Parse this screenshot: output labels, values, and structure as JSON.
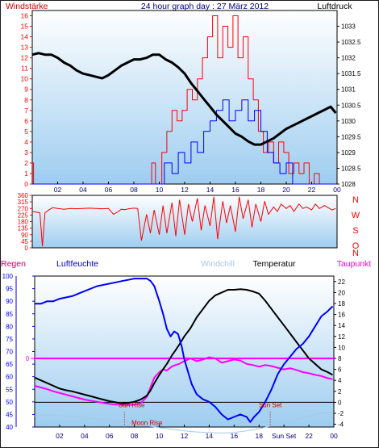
{
  "header": {
    "left_label": "Windstärke",
    "title": "24 hour graph day : 27 März 2012",
    "right_label": "Luftdruck"
  },
  "legend": {
    "regen": "Regen",
    "luftfeuchte": "Luftfeuchte",
    "windchill": "Windchill",
    "temperatur": "Temperatur",
    "taupunkt": "Taupunkt"
  },
  "direction_labels": [
    "N",
    "W",
    "S",
    "O",
    "N"
  ],
  "colors": {
    "frame": "#1a1a1a",
    "plot_bg_top": "#ffffff",
    "plot_bg_bottom": "#9ecdf0",
    "wind_gust": "#ff0000",
    "wind_avg": "#0000ff",
    "pressure": "#000000",
    "direction": "#ff0000",
    "humidity": "#0000ff",
    "temperature": "#000000",
    "dewpoint": "#ff00ff",
    "windchill": "#a8c8e8",
    "rain_axis": "#0000ff",
    "temp_axis": "#000000",
    "sun_marker": "#cc0000",
    "hour_label": "#000080"
  },
  "hour_ticks": [
    "02",
    "04",
    "06",
    "08",
    "10",
    "12",
    "14",
    "16",
    "18",
    "20",
    "22",
    "00"
  ],
  "hour_ticks_bottom": [
    "02",
    "04",
    "06",
    "08",
    "10",
    "12",
    "14",
    "16",
    "18",
    "Sun Set",
    "22",
    "00"
  ],
  "events": {
    "sunrise_label": "Sun Rise",
    "sunset_label": "Sun Set",
    "moonrise_label": "Moon Rise"
  },
  "chart_data": [
    {
      "type": "line",
      "title": "24 hour graph day : 27 März 2012",
      "xlabel": "",
      "x_unit": "hour",
      "xlim": [
        0,
        24
      ],
      "y_left": {
        "label": "Windstärke",
        "ticks": [
          0,
          1,
          2,
          3,
          4,
          5,
          6,
          7,
          8,
          9,
          10,
          11,
          12,
          13,
          14,
          15,
          16
        ],
        "lim": [
          0,
          16.5
        ]
      },
      "y_right": {
        "label": "Luftdruck",
        "ticks": [
          1028,
          1028.5,
          1029,
          1029.5,
          1030,
          1030.5,
          1031,
          1031.5,
          1032,
          1032.5,
          1033
        ],
        "lim": [
          1028,
          1033.5
        ]
      },
      "series": [
        {
          "axis": "right",
          "x": [
            0,
            0.5,
            1,
            1.5,
            2,
            2.5,
            3,
            3.5,
            4,
            4.5,
            5,
            5.5,
            6,
            6.5,
            7,
            7.5,
            8,
            8.5,
            9,
            9.5,
            10,
            10.5,
            11,
            11.5,
            12,
            12.5,
            13,
            13.5,
            14,
            14.5,
            15,
            15.5,
            16,
            16.5,
            17,
            17.5,
            18,
            18.5,
            19,
            19.5,
            20,
            20.5,
            21,
            21.5,
            22,
            22.5,
            23,
            23.5,
            23.9
          ],
          "y": [
            1032.1,
            1032.15,
            1032.1,
            1032.1,
            1032.0,
            1031.85,
            1031.75,
            1031.6,
            1031.5,
            1031.45,
            1031.4,
            1031.35,
            1031.45,
            1031.6,
            1031.75,
            1031.85,
            1031.95,
            1031.95,
            1032.0,
            1032.1,
            1032.1,
            1031.95,
            1031.85,
            1031.7,
            1031.5,
            1031.2,
            1030.95,
            1030.7,
            1030.45,
            1030.2,
            1030.0,
            1029.8,
            1029.6,
            1029.5,
            1029.35,
            1029.25,
            1029.25,
            1029.35,
            1029.45,
            1029.6,
            1029.75,
            1029.85,
            1029.95,
            1030.05,
            1030.15,
            1030.25,
            1030.35,
            1030.45,
            1030.25
          ]
        },
        {
          "axis": "left",
          "x": [
            0,
            0.1,
            0.1,
            9.4,
            9.4,
            9.7,
            9.7,
            10.2,
            10.2,
            10.6,
            10.6,
            11,
            11,
            11.4,
            11.4,
            11.8,
            11.8,
            12.2,
            12.2,
            12.6,
            12.6,
            13,
            13,
            13.4,
            13.4,
            13.8,
            13.8,
            14.2,
            14.2,
            14.6,
            14.6,
            15,
            15,
            15.4,
            15.4,
            15.8,
            15.8,
            16.2,
            16.2,
            16.6,
            16.6,
            17,
            17,
            17.4,
            17.4,
            17.8,
            17.8,
            18.2,
            18.2,
            18.6,
            18.6,
            19,
            19,
            19.4,
            19.4,
            19.8,
            19.8,
            20.2,
            20.2,
            20.6,
            20.6,
            21,
            21,
            21.4,
            21.4,
            21.8,
            21.8,
            22.2,
            22.2,
            22.6,
            22.6,
            23,
            23,
            23.9
          ],
          "y": [
            2,
            2,
            0,
            0,
            2,
            2,
            0,
            0,
            3,
            3,
            5,
            5,
            7,
            7,
            6,
            6,
            7,
            7,
            9,
            9,
            8,
            8,
            10,
            10,
            12,
            12,
            14,
            14,
            16,
            16,
            12,
            12,
            15,
            15,
            13,
            13,
            16,
            16,
            12,
            12,
            14,
            14,
            10,
            10,
            8,
            8,
            5,
            5,
            3,
            3,
            4,
            4,
            2,
            2,
            4,
            4,
            3,
            3,
            1,
            1,
            2,
            2,
            1,
            1,
            2,
            2,
            0,
            0,
            1,
            1,
            0,
            0,
            0,
            0
          ]
        },
        {
          "axis": "left",
          "x": [
            0,
            10.4,
            10.4,
            11,
            11,
            11.5,
            11.5,
            12,
            12,
            12.5,
            12.5,
            13,
            13,
            13.5,
            13.5,
            14,
            14,
            14.5,
            14.5,
            15,
            15,
            15.5,
            15.5,
            16,
            16,
            16.5,
            16.5,
            17,
            17,
            17.5,
            17.5,
            18,
            18,
            18.5,
            18.5,
            19,
            19,
            19.5,
            19.5,
            20,
            20,
            20.5,
            20.5,
            21,
            21,
            23.9
          ],
          "y": [
            0,
            0,
            2,
            2,
            1,
            1,
            3,
            3,
            2,
            2,
            4,
            4,
            3,
            3,
            5,
            5,
            6,
            6,
            7,
            7,
            8,
            8,
            6,
            6,
            7,
            7,
            8,
            8,
            6,
            6,
            7,
            7,
            5,
            5,
            3,
            3,
            2,
            2,
            1,
            1,
            2,
            2,
            0,
            0,
            0,
            0
          ]
        }
      ]
    },
    {
      "type": "line",
      "x_unit": "hour",
      "xlim": [
        0,
        24
      ],
      "y_left": {
        "ticks": [
          0,
          45,
          90,
          135,
          180,
          225,
          270,
          315,
          360
        ],
        "lim": [
          0,
          360
        ]
      },
      "series": [
        {
          "axis": "left",
          "x": [
            0,
            0.6,
            0.8,
            1,
            1.3,
            1.6,
            2,
            2.5,
            3,
            3.5,
            4,
            4.5,
            5,
            5.5,
            6,
            6.2,
            6.4,
            6.8,
            7,
            7.3,
            7.6,
            8,
            8.3,
            8.6,
            9,
            9.3,
            9.6,
            10,
            10.3,
            10.6,
            11,
            11.3,
            11.6,
            12,
            12.3,
            12.6,
            13,
            13.3,
            13.6,
            14,
            14.3,
            14.6,
            15,
            15.3,
            15.6,
            16,
            16.3,
            16.6,
            17,
            17.3,
            17.6,
            18,
            18.3,
            18.6,
            19,
            19.3,
            19.6,
            20,
            20.3,
            20.6,
            21,
            21.3,
            21.6,
            22,
            22.3,
            22.6,
            23,
            23.3,
            23.6,
            23.9
          ],
          "y": [
            250,
            240,
            10,
            240,
            260,
            275,
            270,
            265,
            270,
            268,
            270,
            272,
            270,
            268,
            270,
            250,
            230,
            250,
            265,
            262,
            268,
            272,
            270,
            50,
            230,
            100,
            260,
            90,
            290,
            100,
            310,
            80,
            330,
            90,
            300,
            180,
            340,
            120,
            290,
            150,
            350,
            60,
            320,
            170,
            290,
            110,
            350,
            200,
            330,
            140,
            300,
            180,
            320,
            230,
            280,
            250,
            300,
            270,
            290,
            250,
            300,
            270,
            280,
            260,
            300,
            270,
            290,
            275,
            260,
            270
          ]
        }
      ]
    },
    {
      "type": "line",
      "x_unit": "hour",
      "xlim": [
        0,
        24
      ],
      "y_left": {
        "label": "Luftfeuchte",
        "ticks": [
          40,
          45,
          50,
          55,
          60,
          65,
          70,
          75,
          80,
          85,
          90,
          95,
          100
        ],
        "lim": [
          40,
          100
        ]
      },
      "y_right": {
        "label": "Temperatur",
        "ticks": [
          -4,
          -2,
          0,
          2,
          4,
          6,
          8,
          10,
          12,
          14,
          16,
          18,
          20,
          22
        ],
        "lim": [
          -4.5,
          23
        ]
      },
      "series": [
        {
          "name": "Luftfeuchte",
          "axis": "left",
          "x": [
            0,
            0.5,
            1,
            1.5,
            2,
            3,
            4,
            5,
            6,
            6.5,
            7,
            7.5,
            8,
            8.5,
            9,
            9.3,
            9.6,
            10,
            10.3,
            10.6,
            10.9,
            11.2,
            11.5,
            11.8,
            12,
            12.3,
            12.6,
            13,
            13.5,
            14,
            14.5,
            15,
            15.5,
            16,
            16.5,
            17,
            17.3,
            17.6,
            18,
            18.5,
            19,
            19.5,
            20,
            20.5,
            21,
            21.5,
            22,
            22.5,
            23,
            23.5,
            23.9
          ],
          "y": [
            89,
            89,
            90,
            90,
            91,
            92,
            94,
            96,
            97,
            97.5,
            98,
            98.5,
            99,
            99,
            99,
            98,
            96,
            90,
            85,
            79,
            76,
            78,
            77,
            72,
            67,
            62,
            57,
            53,
            51,
            50,
            48,
            45,
            43,
            44,
            45,
            44,
            42,
            44,
            46,
            50,
            55,
            61,
            65,
            68,
            71,
            73,
            76,
            80,
            84,
            86,
            88
          ]
        },
        {
          "name": "Temperatur",
          "axis": "right",
          "x": [
            0,
            0.5,
            1,
            1.5,
            2,
            2.5,
            3,
            3.5,
            4,
            4.5,
            5,
            5.5,
            6,
            6.5,
            7,
            7.5,
            8,
            8.5,
            9,
            9.3,
            9.6,
            10,
            10.3,
            10.6,
            11,
            11.3,
            11.6,
            12,
            12.5,
            13,
            13.5,
            14,
            14.5,
            15,
            15.5,
            16,
            16.5,
            17,
            17.5,
            18,
            18.5,
            19,
            19.5,
            20,
            20.5,
            21,
            21.5,
            22,
            22.5,
            23,
            23.5,
            23.9
          ],
          "y": [
            4.5,
            4,
            3.5,
            3,
            2.5,
            2.2,
            2,
            1.7,
            1.4,
            1.1,
            0.8,
            0.5,
            0.2,
            0,
            -0.2,
            -0.1,
            0.1,
            0.5,
            1.2,
            2.2,
            3.5,
            5,
            6,
            7,
            8.5,
            9.5,
            10.5,
            12,
            13.5,
            15.5,
            17,
            18.5,
            19.5,
            20,
            20.5,
            20.5,
            20.6,
            20.5,
            20.2,
            19.8,
            18.5,
            17,
            15.5,
            14,
            12.5,
            11,
            9.5,
            8,
            7,
            6,
            5.5,
            5
          ]
        },
        {
          "name": "Taupunkt",
          "axis": "right",
          "x": [
            0,
            0.5,
            1,
            1.5,
            2,
            2.5,
            3,
            3.5,
            4,
            4.5,
            5,
            5.5,
            6,
            6.5,
            7,
            7.5,
            8,
            8.5,
            9,
            9.3,
            9.6,
            10,
            10.3,
            10.6,
            11,
            11.3,
            11.6,
            12,
            12.5,
            13,
            13.5,
            14,
            14.5,
            15,
            15.5,
            16,
            16.5,
            17,
            17.5,
            18,
            18.5,
            19,
            19.5,
            20,
            20.5,
            21,
            21.5,
            22,
            22.5,
            23,
            23.5,
            23.9
          ],
          "y": [
            3,
            2.7,
            2.4,
            2,
            1.7,
            1.4,
            1.1,
            0.8,
            0.5,
            0.3,
            0.1,
            -0.1,
            -0.3,
            -0.4,
            -0.5,
            -0.5,
            -0.4,
            -0.2,
            1,
            2.8,
            4.5,
            5.5,
            6,
            5.8,
            6.5,
            6.8,
            7,
            7.5,
            8,
            7.5,
            7.8,
            8.2,
            8,
            7.2,
            7.5,
            7.8,
            7.6,
            7,
            6.8,
            6.5,
            6.8,
            6.6,
            6.3,
            6,
            6.2,
            5.9,
            5.5,
            5.3,
            5,
            4.8,
            4.4,
            4.2
          ]
        },
        {
          "name": "Windchill",
          "axis": "right",
          "x": [
            0,
            1,
            2,
            3,
            4,
            5,
            6,
            7,
            8,
            9,
            10,
            11,
            12,
            13,
            14,
            15,
            16,
            17,
            18,
            19,
            20,
            21,
            22,
            23,
            23.9
          ],
          "y": [
            -2.5,
            -2.3,
            -2.4,
            -2.6,
            -2.8,
            -3,
            -3.3,
            -3.6,
            -3.9,
            -4.3,
            -4.6,
            -4.9,
            -5.2,
            -5.4,
            -5.5,
            -5.6,
            -5.5,
            -5.2,
            -4.8,
            -4.3,
            -3.7,
            -3.1,
            -2.5,
            -2,
            -1.8
          ]
        }
      ],
      "reference_lines": [
        {
          "axis": "right",
          "value": 8,
          "label": "0"
        },
        {
          "axis": "right",
          "value": 0
        }
      ],
      "events": [
        {
          "label": "Sun Rise",
          "x": 7.0
        },
        {
          "label": "Moon Rise",
          "x": 7.2
        },
        {
          "label": "Sun Set",
          "x": 18.9
        }
      ]
    }
  ]
}
